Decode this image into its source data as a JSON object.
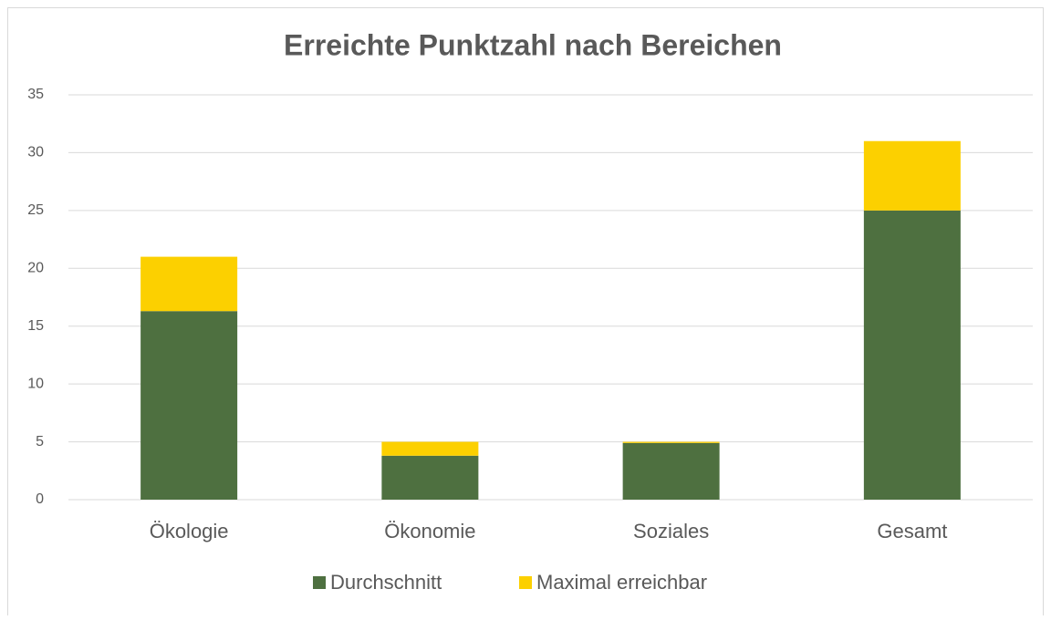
{
  "chart_data": {
    "type": "stacked_bar",
    "title": "Erreichte Punktzahl nach Bereichen",
    "categories": [
      "Ökologie",
      "Ökonomie",
      "Soziales",
      "Gesamt"
    ],
    "series": [
      {
        "name": "Durchschnitt",
        "color": "#4e7040",
        "values": [
          16.3,
          3.8,
          4.9,
          25
        ]
      },
      {
        "name": "Maximal erreichbar",
        "color": "#fcd000",
        "values": [
          4.7,
          1.2,
          0.1,
          6
        ]
      }
    ],
    "ylim": [
      0,
      35
    ],
    "yticks": [
      0,
      5,
      10,
      15,
      20,
      25,
      30,
      35
    ],
    "grid": true,
    "legend": "bottom"
  }
}
